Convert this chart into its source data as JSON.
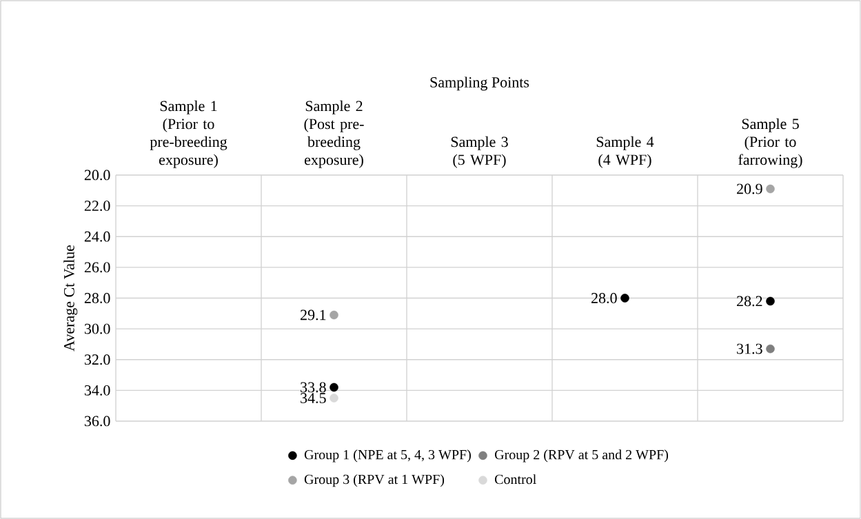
{
  "chart_data": {
    "type": "scatter",
    "xlabel": "Sampling Points",
    "ylabel": "Average Ct Value",
    "categories": [
      "Sample 1 (Prior to pre-breeding exposure)",
      "Sample 2 (Post pre-breeding exposure)",
      "Sample 3 (5 WPF)",
      "Sample 4 (4 WPF)",
      "Sample 5 (Prior to farrowing)"
    ],
    "ylim": [
      36,
      20
    ],
    "yticks": [
      {
        "value": 20,
        "label": "20.0"
      },
      {
        "value": 22,
        "label": "22.0"
      },
      {
        "value": 24,
        "label": "24.0"
      },
      {
        "value": 26,
        "label": "26.0"
      },
      {
        "value": 28,
        "label": "28.0"
      },
      {
        "value": 30,
        "label": "30.0"
      },
      {
        "value": 32,
        "label": "32.0"
      },
      {
        "value": 34,
        "label": "34.0"
      },
      {
        "value": 36,
        "label": "36.0"
      }
    ],
    "grid": true,
    "legend": "bottom",
    "marker": "circle",
    "series": [
      {
        "name": "Group 1 (NPE at 5, 4, 3 WPF)",
        "color": "#000000",
        "values": [
          null,
          33.8,
          null,
          28.0,
          28.2
        ],
        "value_labels": [
          null,
          "33.8",
          null,
          "28.0",
          "28.2"
        ]
      },
      {
        "name": "Group 2 (RPV at 5 and 2 WPF)",
        "color": "#7f7f7f",
        "values": [
          null,
          null,
          null,
          null,
          31.3
        ],
        "value_labels": [
          null,
          null,
          null,
          null,
          "31.3"
        ]
      },
      {
        "name": "Group 3 (RPV at 1 WPF)",
        "color": "#a5a5a5",
        "values": [
          null,
          29.1,
          null,
          null,
          20.9
        ],
        "value_labels": [
          null,
          "29.1",
          null,
          null,
          "20.9"
        ]
      },
      {
        "name": "Control",
        "color": "#d9d9d9",
        "values": [
          null,
          34.5,
          null,
          null,
          null
        ],
        "value_labels": [
          null,
          "34.5",
          null,
          null,
          null
        ]
      }
    ]
  }
}
